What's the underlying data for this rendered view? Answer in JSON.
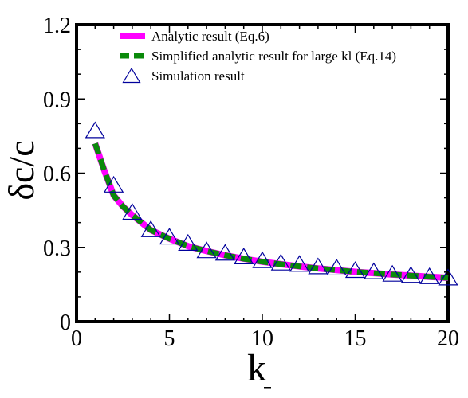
{
  "chart_data": {
    "type": "line",
    "title": "",
    "xlabel": "k",
    "ylabel": "δc/c",
    "xlim": [
      0,
      20
    ],
    "ylim": [
      0,
      1.2
    ],
    "xticks": [
      0,
      5,
      10,
      15,
      20
    ],
    "yticks": [
      0,
      0.3,
      0.6,
      0.9,
      1.2
    ],
    "xtick_labels": [
      "0",
      "5",
      "10",
      "15",
      "20"
    ],
    "ytick_labels": [
      "0",
      "0.3",
      "0.6",
      "0.9",
      "1.2"
    ],
    "grid": false,
    "legend_position": "top",
    "series": [
      {
        "name": "Analytic result (Eq.6)",
        "style": "solid",
        "color": "#ff00ff",
        "x": [
          1,
          1.5,
          2,
          2.5,
          3,
          3.5,
          4,
          5,
          6,
          7,
          8,
          9,
          10,
          11,
          12,
          13,
          14,
          15,
          16,
          17,
          18,
          19,
          20
        ],
        "y": [
          0.72,
          0.61,
          0.51,
          0.465,
          0.43,
          0.4,
          0.37,
          0.335,
          0.305,
          0.285,
          0.268,
          0.254,
          0.242,
          0.232,
          0.223,
          0.215,
          0.208,
          0.201,
          0.196,
          0.19,
          0.186,
          0.181,
          0.177
        ]
      },
      {
        "name": "Simplified analytic result for large kl (Eq.14)",
        "style": "dashed",
        "color": "#0a8a0a",
        "x": [
          1,
          1.5,
          2,
          2.5,
          3,
          3.5,
          4,
          5,
          6,
          7,
          8,
          9,
          10,
          11,
          12,
          13,
          14,
          15,
          16,
          17,
          18,
          19,
          20
        ],
        "y": [
          0.72,
          0.61,
          0.51,
          0.465,
          0.43,
          0.4,
          0.37,
          0.335,
          0.305,
          0.285,
          0.268,
          0.254,
          0.242,
          0.232,
          0.223,
          0.215,
          0.208,
          0.201,
          0.196,
          0.19,
          0.186,
          0.181,
          0.177
        ]
      },
      {
        "name": "Simulation result",
        "style": "markers",
        "marker": "triangle",
        "color": "#00009c",
        "x": [
          1,
          2,
          3,
          4,
          5,
          6,
          7,
          8,
          9,
          10,
          11,
          12,
          13,
          14,
          15,
          16,
          17,
          18,
          19,
          20
        ],
        "y": [
          0.77,
          0.55,
          0.44,
          0.37,
          0.34,
          0.315,
          0.285,
          0.275,
          0.26,
          0.245,
          0.235,
          0.23,
          0.22,
          0.215,
          0.205,
          0.2,
          0.19,
          0.185,
          0.18,
          0.175
        ]
      }
    ]
  }
}
